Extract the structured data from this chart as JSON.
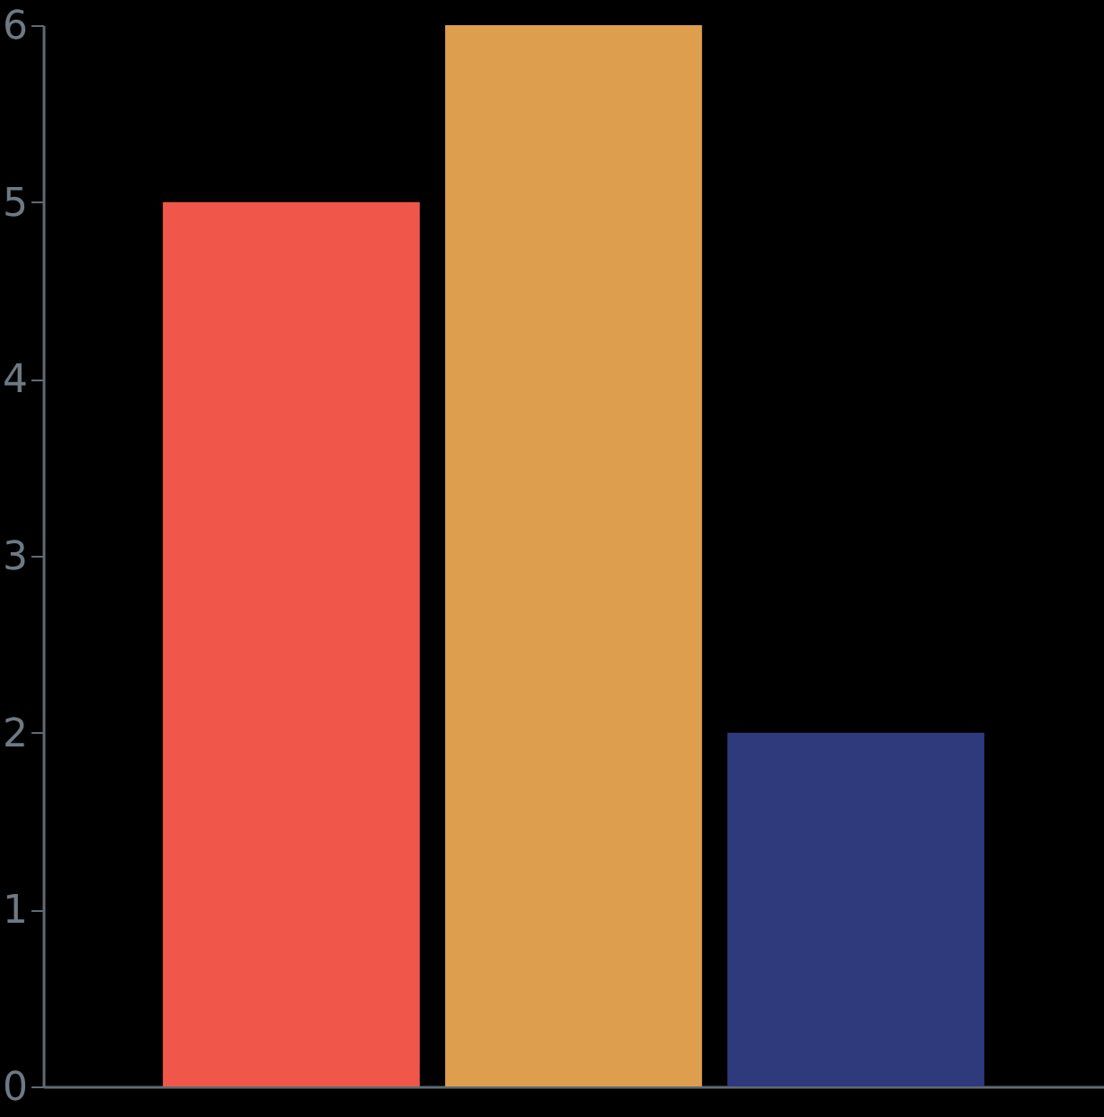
{
  "chart_data": {
    "type": "bar",
    "categories": [
      null,
      null,
      null
    ],
    "values": [
      5,
      6,
      2
    ],
    "colors": [
      "#f0574a",
      "#dd9e4d",
      "#2e3a7c"
    ],
    "ylim": [
      0,
      6
    ],
    "yticks": [
      0,
      1,
      2,
      3,
      4,
      5,
      6
    ],
    "grid": false,
    "tick_labels": "y"
  }
}
